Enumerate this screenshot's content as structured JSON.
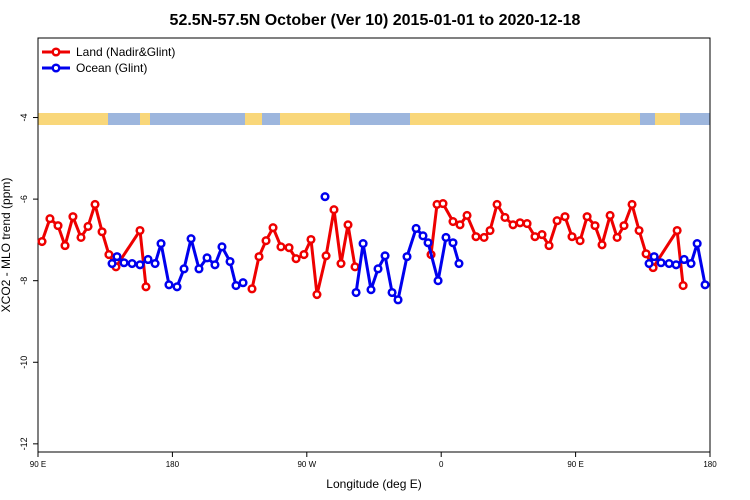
{
  "chart_data": {
    "type": "line",
    "title": "52.5N-57.5N October (Ver 10)   2015-01-01 to 2020-12-18",
    "xlabel": "Longitude (deg E)",
    "ylabel": "XCO2 - MLO trend (ppm)",
    "xlim": [
      90,
      540
    ],
    "ylim": [
      -12.2,
      -2.05
    ],
    "xticks": [
      {
        "value": 90,
        "label": "90 E"
      },
      180,
      {
        "value": 270,
        "label": "90 W"
      },
      {
        "value": 360,
        "label": "0"
      },
      {
        "value": 450,
        "label": "90 E"
      },
      {
        "value": 540,
        "label": "180"
      }
    ],
    "yticks": [
      -12,
      -10,
      -8,
      -6,
      -4
    ],
    "legend": "upper left",
    "series": [
      {
        "name": "Land (Nadir&Glint)",
        "color": "#ee0000",
        "x": [
          92.7,
          98.0,
          103.4,
          108.1,
          113.4,
          118.8,
          123.5,
          128.2,
          132.9,
          137.5,
          142.2,
          158.3,
          162.3,
          null,
          233.3,
          238.0,
          242.7,
          247.4,
          252.7,
          258.1,
          262.8,
          268.1,
          272.8,
          276.8,
          282.9,
          288.2,
          292.9,
          297.6,
          302.3,
          null,
          353.2,
          357.2,
          361.2,
          367.9,
          372.6,
          377.3,
          383.3,
          388.7,
          392.7,
          397.4,
          402.7,
          408.1,
          412.8,
          417.5,
          422.8,
          427.5,
          432.2,
          437.6,
          442.9,
          447.6,
          453.0,
          457.7,
          463.0,
          467.7,
          473.1,
          477.8,
          482.4,
          487.8,
          492.5,
          497.2,
          501.9,
          518.0,
          522.0
        ],
        "values": [
          -7.04,
          -6.48,
          -6.65,
          -7.14,
          -6.43,
          -6.94,
          -6.67,
          -6.13,
          -6.8,
          -7.36,
          -7.66,
          -6.77,
          -8.15,
          null,
          -8.2,
          -7.41,
          -7.02,
          -6.7,
          -7.17,
          -7.19,
          -7.46,
          -7.36,
          -6.99,
          -8.34,
          -7.39,
          -6.26,
          -7.58,
          -6.63,
          -7.66,
          null,
          -7.36,
          -6.13,
          -6.11,
          -6.55,
          -6.63,
          -6.4,
          -6.92,
          -6.94,
          -6.77,
          -6.13,
          -6.45,
          -6.63,
          -6.58,
          -6.6,
          -6.92,
          -6.87,
          -7.14,
          -6.53,
          -6.43,
          -6.92,
          -7.02,
          -6.43,
          -6.65,
          -7.12,
          -6.4,
          -6.94,
          -6.65,
          -6.13,
          -6.77,
          -7.34,
          -7.68,
          -6.77,
          -8.12
        ]
      },
      {
        "name": "Ocean (Glint)",
        "color": "#0000ee",
        "x": [
          139.6,
          142.9,
          147.6,
          153.0,
          158.3,
          163.7,
          168.4,
          172.4,
          177.7,
          183.1,
          187.8,
          192.5,
          197.8,
          203.2,
          208.5,
          213.2,
          218.6,
          222.6,
          227.3,
          null,
          282.2,
          null,
          303.0,
          307.7,
          313.0,
          317.7,
          322.4,
          327.1,
          331.1,
          337.1,
          343.2,
          347.8,
          351.2,
          357.9,
          363.2,
          367.9,
          371.9,
          null,
          499.2,
          502.6,
          507.2,
          512.6,
          517.3,
          522.7,
          527.3,
          531.4,
          536.7
        ],
        "values": [
          -7.58,
          -7.41,
          -7.56,
          -7.58,
          -7.61,
          -7.48,
          -7.58,
          -7.09,
          -8.1,
          -8.15,
          -7.71,
          -6.97,
          -7.71,
          -7.44,
          -7.61,
          -7.17,
          -7.53,
          -8.12,
          -8.05,
          null,
          -5.94,
          null,
          -8.29,
          -7.09,
          -8.22,
          -7.71,
          -7.39,
          -8.29,
          -8.47,
          -7.41,
          -6.72,
          -6.9,
          -7.07,
          -8.0,
          -6.94,
          -7.07,
          -7.58,
          null,
          -7.58,
          -7.41,
          -7.56,
          -7.58,
          -7.61,
          -7.48,
          -7.58,
          -7.09,
          -8.1
        ]
      }
    ]
  }
}
